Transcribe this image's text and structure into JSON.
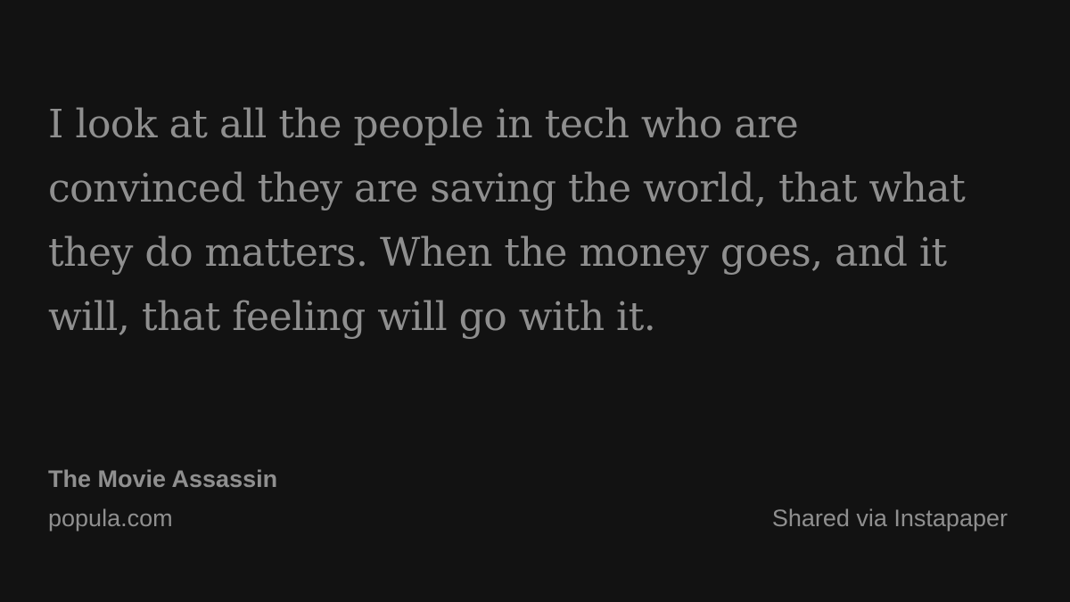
{
  "quote": {
    "lines": [
      "I look at all the people in tech who are",
      "convinced they are saving the world, that what",
      "they do matters. When the money goes, and it",
      "will, that feeling will go with it."
    ]
  },
  "article": {
    "title": "The Movie Assassin",
    "domain": "popula.com"
  },
  "footer": {
    "shared_via": "Shared via Instapaper"
  },
  "colors": {
    "background": "#121212",
    "text": "#8f8f8f"
  }
}
